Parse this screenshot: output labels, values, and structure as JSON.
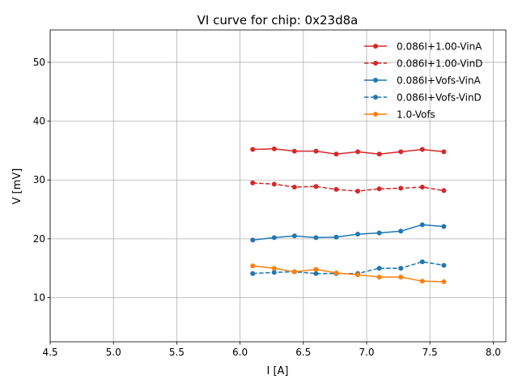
{
  "chart_data": {
    "type": "line",
    "title": "VI curve for chip: 0x23d8a",
    "xlabel": "I [A]",
    "ylabel": "V [mV]",
    "xlim": [
      4.5,
      8.1
    ],
    "ylim": [
      2.5,
      55.5
    ],
    "xticks": [
      4.5,
      5.0,
      5.5,
      6.0,
      6.5,
      7.0,
      7.5,
      8.0
    ],
    "xtick_labels": [
      "4.5",
      "5.0",
      "5.5",
      "6.0",
      "6.5",
      "7.0",
      "7.5",
      "8.0"
    ],
    "yticks": [
      10,
      20,
      30,
      40,
      50
    ],
    "ytick_labels": [
      "10",
      "20",
      "30",
      "40",
      "50"
    ],
    "grid": true,
    "legend_position": "top-right",
    "x": [
      6.1,
      6.27,
      6.43,
      6.6,
      6.76,
      6.93,
      7.1,
      7.27,
      7.44,
      7.61
    ],
    "series": [
      {
        "name": "0.086I+1.00-VinA",
        "color": "#d62728",
        "linestyle": "solid",
        "values": [
          35.2,
          35.3,
          34.9,
          34.9,
          34.4,
          34.8,
          34.4,
          34.8,
          35.2,
          34.8
        ]
      },
      {
        "name": "0.086I+1.00-VinD",
        "color": "#d62728",
        "linestyle": "dashed",
        "values": [
          29.5,
          29.3,
          28.8,
          28.9,
          28.4,
          28.1,
          28.5,
          28.6,
          28.8,
          28.2
        ]
      },
      {
        "name": "0.086I+Vofs-VinA",
        "color": "#1f77b4",
        "linestyle": "solid",
        "values": [
          19.8,
          20.2,
          20.5,
          20.2,
          20.3,
          20.8,
          21.0,
          21.3,
          22.4,
          22.1
        ]
      },
      {
        "name": "0.086I+Vofs-VinD",
        "color": "#1f77b4",
        "linestyle": "dashed",
        "values": [
          14.1,
          14.3,
          14.4,
          14.1,
          14.1,
          14.1,
          15.0,
          15.0,
          16.1,
          15.5
        ]
      },
      {
        "name": "1.0-Vofs",
        "color": "#ff7f0e",
        "linestyle": "solid",
        "values": [
          15.4,
          15.0,
          14.4,
          14.8,
          14.2,
          13.9,
          13.5,
          13.5,
          12.8,
          12.7
        ]
      }
    ]
  }
}
